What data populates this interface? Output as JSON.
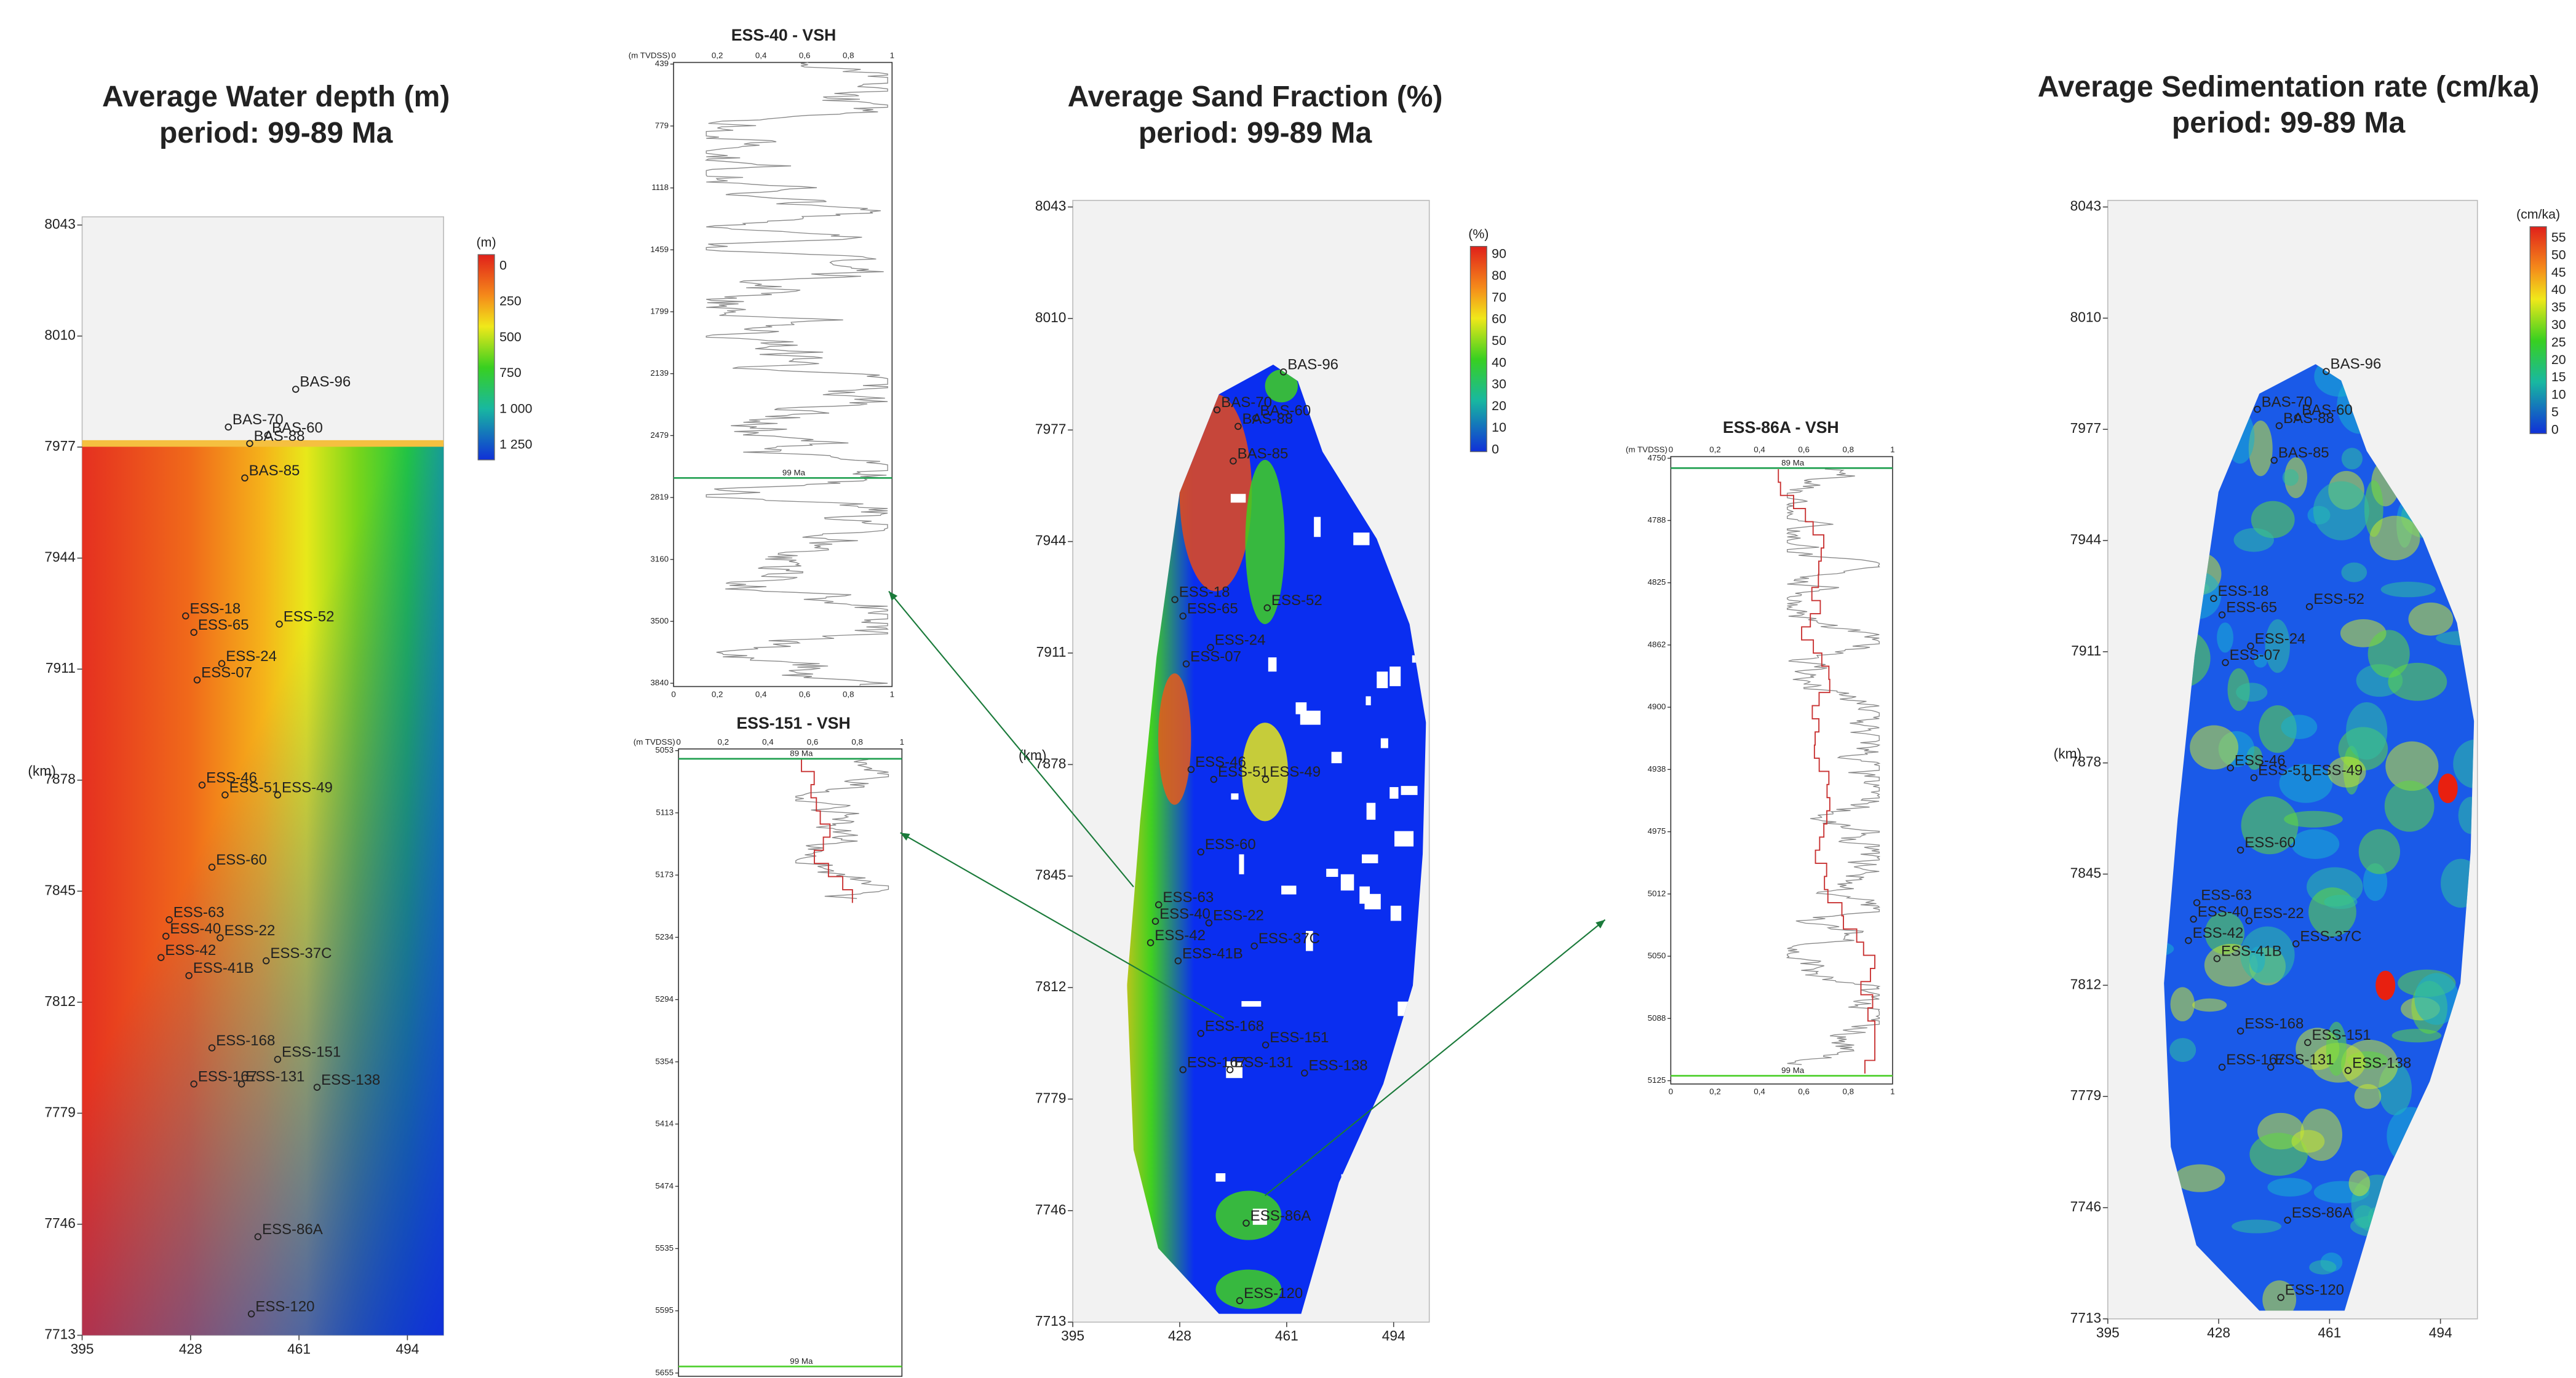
{
  "maps": [
    {
      "title": "Average Water depth (m)",
      "subtitle": "period: 99-89 Ma",
      "y_label": "(km)",
      "yticks": [
        "8043",
        "8010",
        "7977",
        "7944",
        "7911",
        "7878",
        "7845",
        "7812",
        "7779",
        "7746",
        "7713"
      ],
      "xticks": [
        "395",
        "428",
        "461",
        "494"
      ],
      "colorbar": {
        "unit": "(m)",
        "ticks": [
          "0",
          "250",
          "500",
          "750",
          "1 000",
          "1 250"
        ]
      }
    },
    {
      "title": "Average Sand Fraction (%)",
      "subtitle": "period: 99-89 Ma",
      "y_label": "(km)",
      "yticks": [
        "8043",
        "8010",
        "7977",
        "7944",
        "7911",
        "7878",
        "7845",
        "7812",
        "7779",
        "7746",
        "7713"
      ],
      "xticks": [
        "395",
        "428",
        "461",
        "494"
      ],
      "colorbar": {
        "unit": "(%)",
        "ticks": [
          "90",
          "80",
          "70",
          "60",
          "50",
          "40",
          "30",
          "20",
          "10",
          "0"
        ]
      }
    },
    {
      "title": "Average Sedimentation rate (cm/ka)",
      "subtitle": "period: 99-89 Ma",
      "y_label": "(km)",
      "yticks": [
        "8043",
        "8010",
        "7977",
        "7944",
        "7911",
        "7878",
        "7845",
        "7812",
        "7779",
        "7746",
        "7713"
      ],
      "xticks": [
        "395",
        "428",
        "461",
        "494"
      ],
      "colorbar": {
        "unit": "(cm/ka)",
        "ticks": [
          "55",
          "50",
          "45",
          "40",
          "35",
          "30",
          "25",
          "20",
          "15",
          "10",
          "5",
          "0"
        ]
      }
    }
  ],
  "wells": [
    "BAS-96",
    "BAS-70",
    "BAS-60",
    "BAS-88",
    "BAS-85",
    "ESS-18",
    "ESS-65",
    "ESS-52",
    "ESS-24",
    "ESS-07",
    "ESS-46",
    "ESS-51",
    "ESS-49",
    "ESS-60",
    "ESS-63",
    "ESS-40",
    "ESS-22",
    "ESS-42",
    "ESS-37C",
    "ESS-41B",
    "ESS-168",
    "ESS-151",
    "ESS-167",
    "ESS-131",
    "ESS-138",
    "ESS-86A",
    "ESS-120"
  ],
  "logs": [
    {
      "title": "ESS-40 - VSH",
      "depth_unit": "(m TVDSS)",
      "xticks": [
        "0",
        "0,2",
        "0,4",
        "0,6",
        "0,8",
        "1"
      ],
      "depth_ticks": [
        "439",
        "779",
        "1118",
        "1459",
        "1799",
        "2139",
        "2479",
        "2819",
        "3160",
        "3500",
        "3840"
      ],
      "markers": [
        "99 Ma"
      ]
    },
    {
      "title": "ESS-151 - VSH",
      "depth_unit": "(m TVDSS)",
      "xticks": [
        "0",
        "0,2",
        "0,4",
        "0,6",
        "0,8",
        "1"
      ],
      "depth_ticks": [
        "5053",
        "5113",
        "5173",
        "5234",
        "5294",
        "5354",
        "5414",
        "5474",
        "5535",
        "5595",
        "5655"
      ],
      "markers": [
        "89 Ma",
        "99 Ma"
      ]
    },
    {
      "title": "ESS-86A - VSH",
      "depth_unit": "(m TVDSS)",
      "xticks": [
        "0",
        "0,2",
        "0,4",
        "0,6",
        "0,8",
        "1"
      ],
      "depth_ticks": [
        "4750",
        "4788",
        "4825",
        "4862",
        "4900",
        "4938",
        "4975",
        "5012",
        "5050",
        "5088",
        "5125"
      ],
      "markers": [
        "89 Ma",
        "99 Ma"
      ]
    }
  ]
}
